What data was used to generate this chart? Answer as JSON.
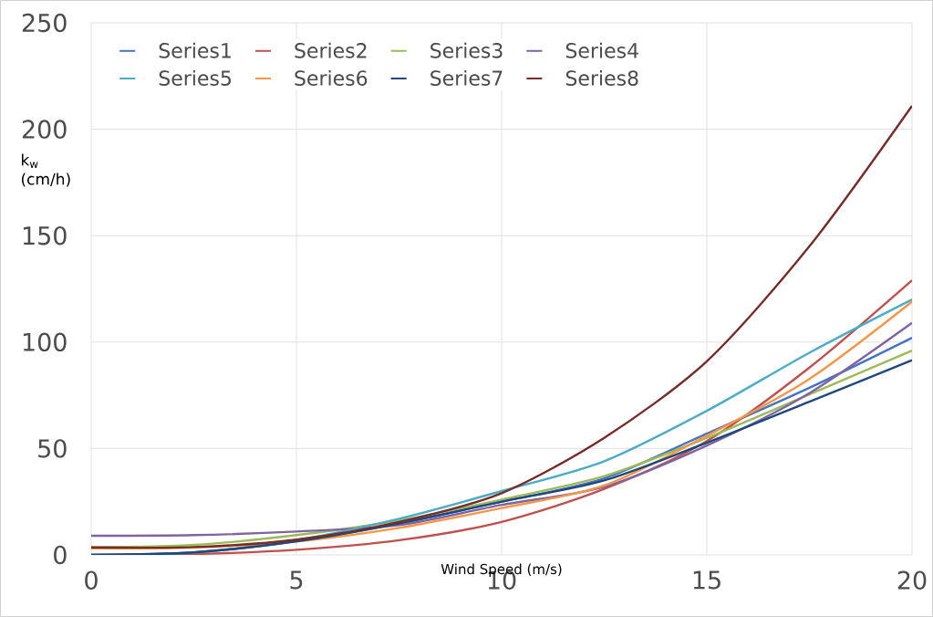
{
  "chart_data": {
    "type": "line",
    "xlabel": "Wind Speed (m/s)",
    "ylabel": "k$_{w}$ (cm/h)",
    "x": [
      0,
      2.5,
      5,
      7.5,
      10,
      12.5,
      15,
      17.5,
      20
    ],
    "series": [
      {
        "name": "Series1",
        "color": "#4472c4",
        "values": [
          0,
          1.2,
          6.4,
          14.8,
          25,
          36,
          57,
          78.5,
          102
        ]
      },
      {
        "name": "Series2",
        "color": "#c0504d",
        "values": [
          0,
          0.4,
          2.4,
          6.9,
          15.5,
          31,
          53.5,
          88,
          129
        ]
      },
      {
        "name": "Series3",
        "color": "#9bbb59",
        "values": [
          3.5,
          4.7,
          9.3,
          16.2,
          26,
          37,
          55,
          75.4,
          96
        ]
      },
      {
        "name": "Series4",
        "color": "#8064a2",
        "values": [
          9,
          9.3,
          11,
          14,
          23.5,
          32,
          51.4,
          76,
          109
        ]
      },
      {
        "name": "Series5",
        "color": "#4bacc6",
        "values": [
          0,
          1.2,
          7,
          17,
          30,
          44,
          67.7,
          95,
          120
        ]
      },
      {
        "name": "Series6",
        "color": "#f79646",
        "values": [
          3,
          3.5,
          6.3,
          12.7,
          22,
          32.6,
          56,
          82.7,
          119
        ]
      },
      {
        "name": "Series7",
        "color": "#1f497d",
        "values": [
          0,
          1.2,
          6.4,
          14.8,
          25,
          35,
          52.7,
          72,
          91.5
        ]
      },
      {
        "name": "Series8",
        "color": "#772c2a",
        "values": [
          3.5,
          3.7,
          7.2,
          15.5,
          29,
          55,
          91,
          145,
          211
        ]
      }
    ],
    "xlim": [
      0,
      20
    ],
    "ylim": [
      0,
      250
    ],
    "xticks": [
      0,
      5,
      10,
      15,
      20
    ],
    "yticks": [
      0,
      50,
      100,
      150,
      200,
      250
    ],
    "grid": true,
    "legend": "top"
  }
}
